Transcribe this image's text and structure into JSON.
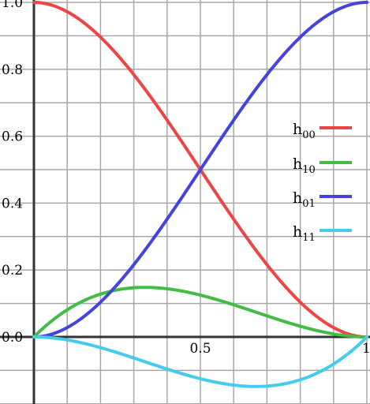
{
  "chart_data": {
    "type": "line",
    "xlim": [
      0,
      1
    ],
    "ylim": [
      -0.2,
      1.0
    ],
    "grid": true,
    "legend_position": "right",
    "x_ticks": [
      {
        "value": 0.5,
        "label": "0.5"
      },
      {
        "value": 1.0,
        "label": "1"
      }
    ],
    "y_ticks": [
      {
        "value": 0.0,
        "label": "0.0"
      },
      {
        "value": 0.2,
        "label": "0.2"
      },
      {
        "value": 0.4,
        "label": "0.4"
      },
      {
        "value": 0.6,
        "label": "0.6"
      },
      {
        "value": 0.8,
        "label": "0.8"
      },
      {
        "value": 1.0,
        "label": "1.0"
      }
    ],
    "x": [
      0,
      0.1,
      0.2,
      0.3,
      0.4,
      0.5,
      0.6,
      0.7,
      0.8,
      0.9,
      1.0
    ],
    "series": [
      {
        "name_base": "h",
        "name_sub": "00",
        "color": "#ee4444",
        "values": [
          1.0,
          0.972,
          0.896,
          0.784,
          0.648,
          0.5,
          0.352,
          0.216,
          0.104,
          0.028,
          0.0
        ]
      },
      {
        "name_base": "h",
        "name_sub": "10",
        "color": "#44bb44",
        "values": [
          0.0,
          0.081,
          0.128,
          0.147,
          0.144,
          0.125,
          0.096,
          0.063,
          0.032,
          0.009,
          0.0
        ]
      },
      {
        "name_base": "h",
        "name_sub": "01",
        "color": "#4444dd",
        "values": [
          0.0,
          0.028,
          0.104,
          0.216,
          0.352,
          0.5,
          0.648,
          0.784,
          0.896,
          0.972,
          1.0
        ]
      },
      {
        "name_base": "h",
        "name_sub": "11",
        "color": "#44ccee",
        "values": [
          0.0,
          -0.009,
          -0.032,
          -0.063,
          -0.096,
          -0.125,
          -0.144,
          -0.147,
          -0.128,
          -0.081,
          0.0
        ]
      }
    ]
  }
}
